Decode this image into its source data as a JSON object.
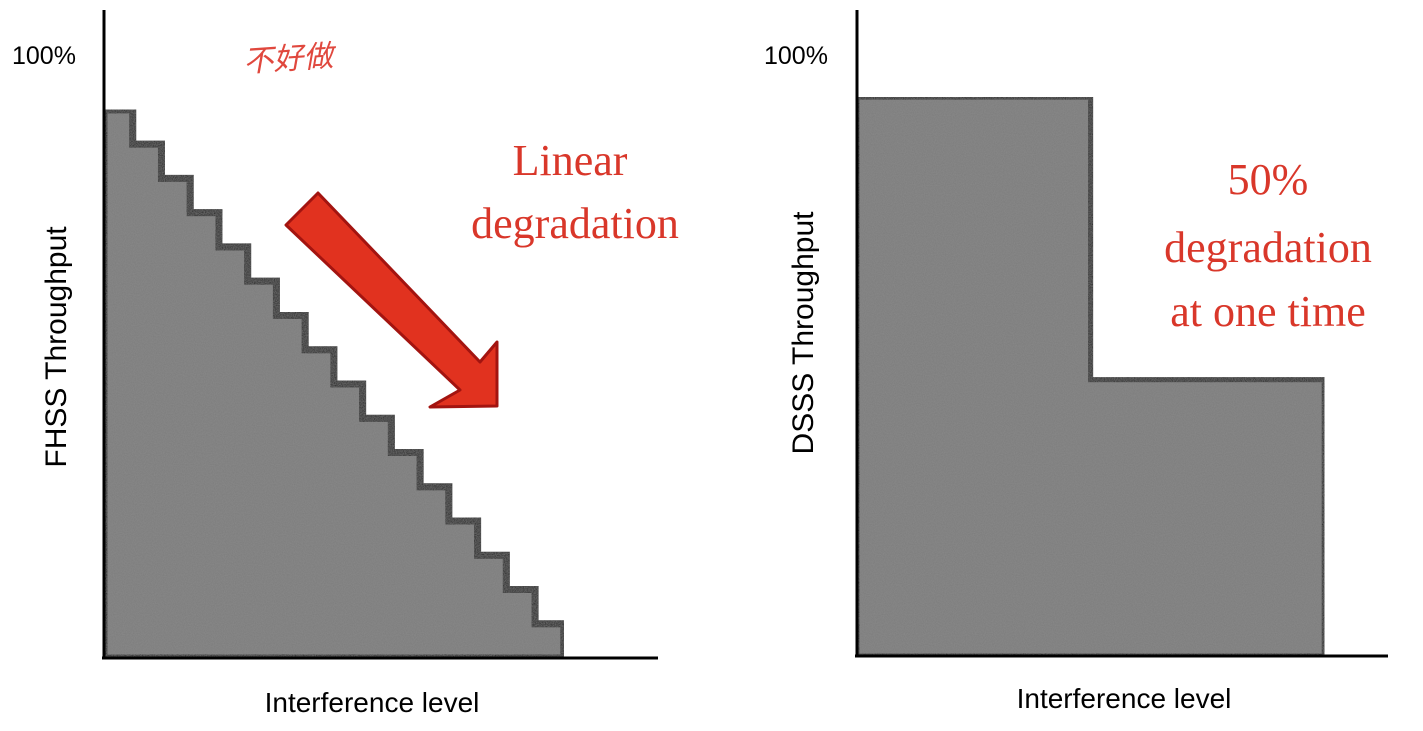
{
  "chart_data": [
    {
      "type": "area",
      "ylabel": "FHSS Throughput",
      "xlabel": "Interference level",
      "ytick_top": "100%",
      "annotation": [
        "Linear",
        "degradation"
      ],
      "handwritten_note": "不好做",
      "ylim": [
        0,
        100
      ],
      "xlim": [
        0,
        1
      ],
      "series": [
        {
          "shape": "staircase",
          "steps": 16,
          "y_start": 87,
          "y_end": 0,
          "x_end": 0.83,
          "fill": "#7b7b7b"
        }
      ]
    },
    {
      "type": "area",
      "ylabel": "DSSS Throughput",
      "xlabel": "Interference level",
      "ytick_top": "100%",
      "annotation": [
        "50%",
        "degradation",
        "at one time"
      ],
      "ylim": [
        0,
        100
      ],
      "xlim": [
        0,
        1
      ],
      "series": [
        {
          "shape": "two-level-step",
          "levels": [
            {
              "x_from": 0,
              "x_to": 0.44,
              "y": 89
            },
            {
              "x_from": 0.44,
              "x_to": 0.88,
              "y": 44
            }
          ],
          "fill": "#7b7b7b"
        }
      ]
    }
  ],
  "colors": {
    "annotation": "#d9372a",
    "arrow": "#e1321f",
    "axis": "#000000",
    "fill": "#7b7b7b"
  }
}
